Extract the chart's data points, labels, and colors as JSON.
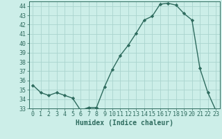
{
  "x": [
    0,
    1,
    2,
    3,
    4,
    5,
    6,
    7,
    8,
    9,
    10,
    11,
    12,
    13,
    14,
    15,
    16,
    17,
    18,
    19,
    20,
    21,
    22,
    23
  ],
  "y": [
    35.5,
    34.7,
    34.4,
    34.7,
    34.4,
    34.1,
    32.8,
    33.1,
    33.1,
    35.3,
    37.2,
    38.7,
    39.8,
    41.1,
    42.5,
    42.9,
    44.2,
    44.3,
    44.1,
    43.2,
    42.5,
    37.3,
    34.7,
    32.8
  ],
  "line_color": "#2e6b5e",
  "marker": "D",
  "marker_size": 2.2,
  "bg_color": "#cceee8",
  "grid_color": "#aad4ce",
  "xlabel": "Humidex (Indice chaleur)",
  "ylim": [
    33,
    44.5
  ],
  "xlim": [
    -0.5,
    23.5
  ],
  "yticks": [
    33,
    34,
    35,
    36,
    37,
    38,
    39,
    40,
    41,
    42,
    43,
    44
  ],
  "xticks": [
    0,
    1,
    2,
    3,
    4,
    5,
    6,
    7,
    8,
    9,
    10,
    11,
    12,
    13,
    14,
    15,
    16,
    17,
    18,
    19,
    20,
    21,
    22,
    23
  ],
  "xlabel_fontsize": 7,
  "tick_fontsize": 6,
  "line_width": 1.0
}
